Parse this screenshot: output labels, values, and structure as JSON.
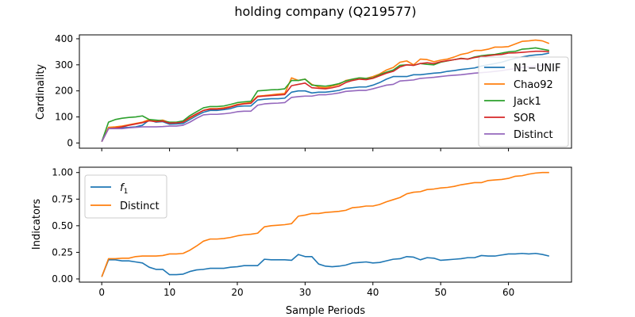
{
  "title": "holding company (Q219577)",
  "colors": {
    "blue": "#1f77b4",
    "orange": "#ff7f0e",
    "green": "#2ca02c",
    "red": "#d62728",
    "purple": "#9467bd"
  },
  "chart_data": [
    {
      "type": "line",
      "ylabel": "Cardinality",
      "xlabel": "",
      "xlim": [
        -3.3,
        69.3
      ],
      "ylim": [
        -20,
        415
      ],
      "xticks": [
        0,
        10,
        20,
        30,
        40,
        50,
        60
      ],
      "yticks": [
        0,
        100,
        200,
        300,
        400
      ],
      "xticklabels_visible": false,
      "legend": "right",
      "x": [
        0,
        1,
        2,
        3,
        4,
        5,
        6,
        7,
        8,
        9,
        10,
        11,
        12,
        13,
        14,
        15,
        16,
        17,
        18,
        19,
        20,
        21,
        22,
        23,
        24,
        25,
        26,
        27,
        28,
        29,
        30,
        31,
        32,
        33,
        34,
        35,
        36,
        37,
        38,
        39,
        40,
        41,
        42,
        43,
        44,
        45,
        46,
        47,
        48,
        49,
        50,
        51,
        52,
        53,
        54,
        55,
        56,
        57,
        58,
        59,
        60,
        61,
        62,
        63,
        64,
        65,
        66
      ],
      "series": [
        {
          "name": "N1−UNIF",
          "color": "blue",
          "values": [
            5,
            57,
            58,
            59,
            60,
            62,
            68,
            88,
            80,
            82,
            72,
            73,
            75,
            90,
            105,
            118,
            125,
            125,
            128,
            132,
            140,
            142,
            142,
            165,
            168,
            170,
            170,
            172,
            195,
            200,
            200,
            192,
            195,
            195,
            198,
            202,
            210,
            212,
            215,
            215,
            222,
            232,
            245,
            255,
            255,
            255,
            262,
            262,
            265,
            268,
            270,
            275,
            278,
            282,
            285,
            288,
            295,
            300,
            305,
            310,
            318,
            325,
            330,
            335,
            338,
            340,
            345
          ]
        },
        {
          "name": "Chao92",
          "color": "orange",
          "values": [
            5,
            60,
            62,
            65,
            70,
            75,
            80,
            90,
            85,
            88,
            78,
            78,
            80,
            95,
            110,
            125,
            132,
            132,
            135,
            140,
            148,
            152,
            155,
            180,
            182,
            185,
            188,
            190,
            250,
            240,
            245,
            225,
            215,
            212,
            218,
            225,
            240,
            245,
            250,
            248,
            255,
            265,
            280,
            290,
            310,
            315,
            300,
            322,
            320,
            312,
            318,
            322,
            330,
            340,
            345,
            355,
            355,
            360,
            368,
            368,
            370,
            380,
            390,
            392,
            395,
            392,
            382
          ]
        },
        {
          "name": "Jack1",
          "color": "green",
          "values": [
            5,
            80,
            90,
            95,
            98,
            100,
            104,
            90,
            88,
            85,
            80,
            80,
            85,
            105,
            120,
            135,
            140,
            140,
            142,
            148,
            155,
            158,
            160,
            200,
            202,
            204,
            205,
            208,
            240,
            240,
            245,
            222,
            220,
            218,
            222,
            228,
            238,
            245,
            250,
            248,
            250,
            262,
            272,
            280,
            298,
            300,
            298,
            305,
            302,
            300,
            310,
            315,
            320,
            325,
            322,
            330,
            335,
            338,
            340,
            345,
            350,
            352,
            360,
            362,
            365,
            360,
            355
          ]
        },
        {
          "name": "SOR",
          "color": "red",
          "values": [
            5,
            55,
            58,
            62,
            68,
            73,
            78,
            85,
            82,
            84,
            76,
            77,
            80,
            98,
            112,
            125,
            130,
            130,
            132,
            138,
            146,
            150,
            152,
            178,
            180,
            182,
            184,
            186,
            220,
            225,
            230,
            212,
            210,
            208,
            212,
            218,
            232,
            240,
            245,
            243,
            248,
            258,
            268,
            275,
            292,
            300,
            298,
            305,
            308,
            305,
            312,
            316,
            320,
            324,
            322,
            328,
            332,
            335,
            338,
            340,
            345,
            346,
            348,
            350,
            352,
            352,
            350
          ]
        },
        {
          "name": "Distinct",
          "color": "purple",
          "values": [
            5,
            55,
            55,
            55,
            58,
            60,
            62,
            62,
            62,
            63,
            65,
            65,
            68,
            80,
            95,
            108,
            110,
            110,
            112,
            115,
            120,
            122,
            122,
            145,
            150,
            152,
            153,
            155,
            175,
            178,
            180,
            180,
            185,
            185,
            188,
            192,
            198,
            200,
            202,
            202,
            208,
            215,
            222,
            225,
            238,
            240,
            242,
            248,
            250,
            252,
            255,
            258,
            260,
            262,
            265,
            268,
            270,
            272,
            275,
            278,
            282,
            285,
            290,
            292,
            295,
            298,
            300
          ]
        }
      ]
    },
    {
      "type": "line",
      "ylabel": "Indicators",
      "xlabel": "Sample Periods",
      "xlim": [
        -3.3,
        69.3
      ],
      "ylim": [
        -0.03,
        1.05
      ],
      "xticks": [
        0,
        10,
        20,
        30,
        40,
        50,
        60
      ],
      "yticks": [
        0.0,
        0.25,
        0.5,
        0.75,
        1.0
      ],
      "xticklabels": [
        "0",
        "10",
        "20",
        "30",
        "40",
        "50",
        "60"
      ],
      "yticklabels": [
        "0.00",
        "0.25",
        "0.50",
        "0.75",
        "1.00"
      ],
      "legend": "upper-left",
      "x": [
        0,
        1,
        2,
        3,
        4,
        5,
        6,
        7,
        8,
        9,
        10,
        11,
        12,
        13,
        14,
        15,
        16,
        17,
        18,
        19,
        20,
        21,
        22,
        23,
        24,
        25,
        26,
        27,
        28,
        29,
        30,
        31,
        32,
        33,
        34,
        35,
        36,
        37,
        38,
        39,
        40,
        41,
        42,
        43,
        44,
        45,
        46,
        47,
        48,
        49,
        50,
        51,
        52,
        53,
        54,
        55,
        56,
        57,
        58,
        59,
        60,
        61,
        62,
        63,
        64,
        65,
        66
      ],
      "series": [
        {
          "name": "f1",
          "label_main": "f",
          "label_sub": "1",
          "color": "blue",
          "values": [
            0.02,
            0.18,
            0.18,
            0.17,
            0.17,
            0.16,
            0.15,
            0.11,
            0.09,
            0.09,
            0.04,
            0.04,
            0.045,
            0.07,
            0.085,
            0.09,
            0.1,
            0.1,
            0.1,
            0.11,
            0.115,
            0.125,
            0.125,
            0.125,
            0.185,
            0.18,
            0.18,
            0.18,
            0.175,
            0.23,
            0.21,
            0.21,
            0.14,
            0.12,
            0.115,
            0.12,
            0.13,
            0.15,
            0.155,
            0.16,
            0.15,
            0.155,
            0.17,
            0.185,
            0.19,
            0.21,
            0.205,
            0.18,
            0.2,
            0.195,
            0.175,
            0.18,
            0.185,
            0.19,
            0.2,
            0.2,
            0.22,
            0.215,
            0.215,
            0.225,
            0.235,
            0.235,
            0.24,
            0.235,
            0.24,
            0.23,
            0.215
          ]
        },
        {
          "name": "Distinct",
          "color": "orange",
          "values": [
            0.02,
            0.19,
            0.19,
            0.195,
            0.195,
            0.21,
            0.215,
            0.215,
            0.215,
            0.22,
            0.235,
            0.235,
            0.24,
            0.27,
            0.31,
            0.355,
            0.375,
            0.375,
            0.38,
            0.39,
            0.405,
            0.415,
            0.42,
            0.43,
            0.49,
            0.5,
            0.505,
            0.51,
            0.52,
            0.59,
            0.6,
            0.615,
            0.615,
            0.625,
            0.63,
            0.635,
            0.645,
            0.67,
            0.675,
            0.685,
            0.685,
            0.7,
            0.725,
            0.745,
            0.765,
            0.8,
            0.815,
            0.82,
            0.84,
            0.845,
            0.855,
            0.86,
            0.87,
            0.885,
            0.895,
            0.905,
            0.905,
            0.925,
            0.93,
            0.935,
            0.945,
            0.965,
            0.97,
            0.985,
            0.995,
            1.0,
            1.0
          ]
        }
      ]
    }
  ]
}
